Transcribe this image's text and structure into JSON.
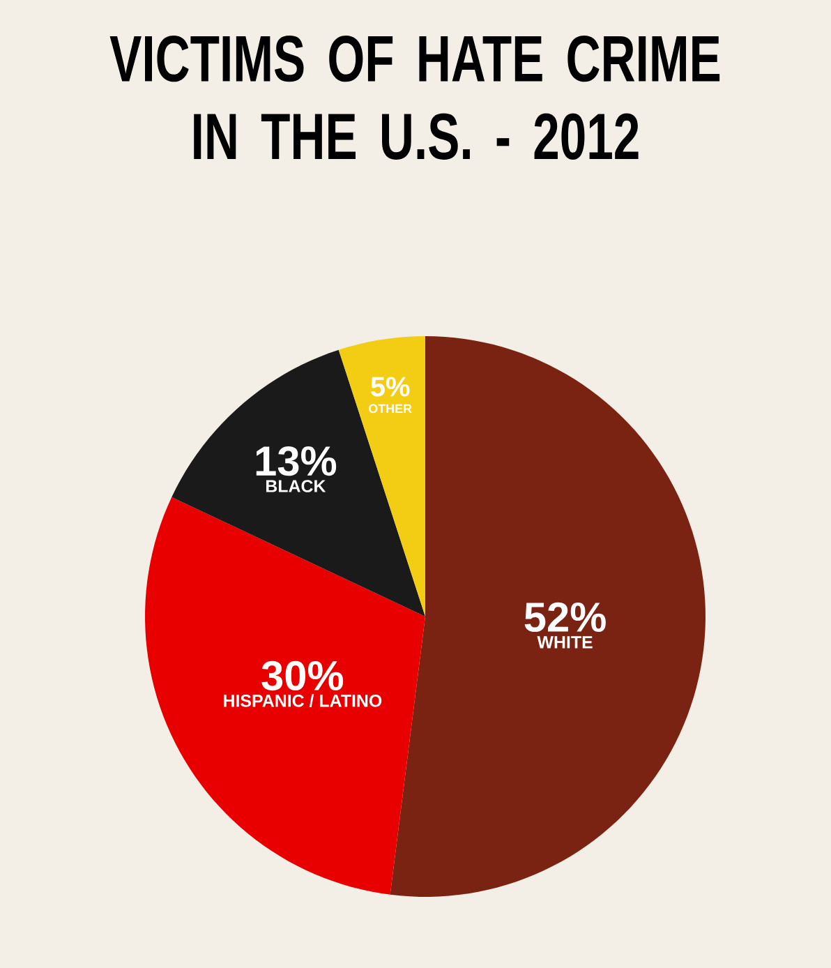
{
  "chart_data": {
    "type": "pie",
    "title": "VICTIMS OF HATE CRIME IN THE U.S. - 2012",
    "categories": [
      "WHITE",
      "HISPANIC / LATINO",
      "BLACK",
      "OTHER"
    ],
    "values": [
      52,
      30,
      13,
      5
    ],
    "value_labels": [
      "52%",
      "30%",
      "13%",
      "5%"
    ],
    "colors": [
      "#7a2313",
      "#e80000",
      "#1a1a1a",
      "#f2cd14"
    ]
  }
}
